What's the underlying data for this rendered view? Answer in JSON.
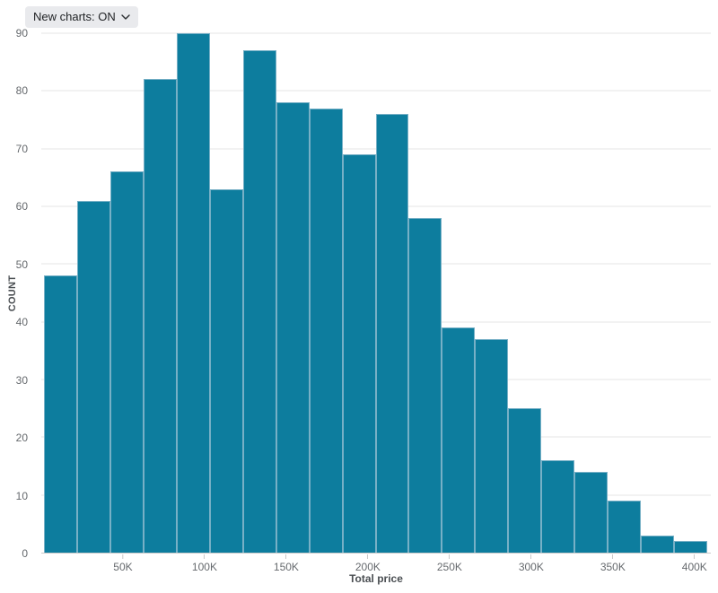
{
  "controls": {
    "new_charts_label": "New charts: ON",
    "chevron_icon": "chevron-down"
  },
  "chart_data": {
    "type": "bar",
    "subtype": "histogram",
    "title": "",
    "xlabel": "Total price",
    "ylabel": "COUNT",
    "bin_edges": [
      0,
      20000,
      40000,
      60000,
      80000,
      100000,
      120000,
      140000,
      160000,
      180000,
      200000,
      220000,
      240000,
      260000,
      280000,
      300000,
      320000,
      340000,
      360000,
      380000,
      400000
    ],
    "values": [
      48,
      61,
      66,
      82,
      90,
      63,
      87,
      78,
      77,
      69,
      76,
      58,
      39,
      37,
      25,
      16,
      14,
      9,
      3,
      2
    ],
    "x_ticks": [
      {
        "value": 50000,
        "label": "50K"
      },
      {
        "value": 100000,
        "label": "100K"
      },
      {
        "value": 150000,
        "label": "150K"
      },
      {
        "value": 200000,
        "label": "200K"
      },
      {
        "value": 250000,
        "label": "250K"
      },
      {
        "value": 300000,
        "label": "300K"
      },
      {
        "value": 350000,
        "label": "350K"
      },
      {
        "value": 400000,
        "label": "400K"
      }
    ],
    "y_ticks": [
      0,
      10,
      20,
      30,
      40,
      50,
      60,
      70,
      80,
      90
    ],
    "xlim": [
      0,
      410000
    ],
    "ylim": [
      0,
      90
    ],
    "grid": "horizontal",
    "legend": "none",
    "bar_color": "#0d7d9e",
    "bar_border_color": "#77b0c6",
    "gridline_color": "#e6e6e6",
    "axis_line_color": "#c9c9c9"
  }
}
